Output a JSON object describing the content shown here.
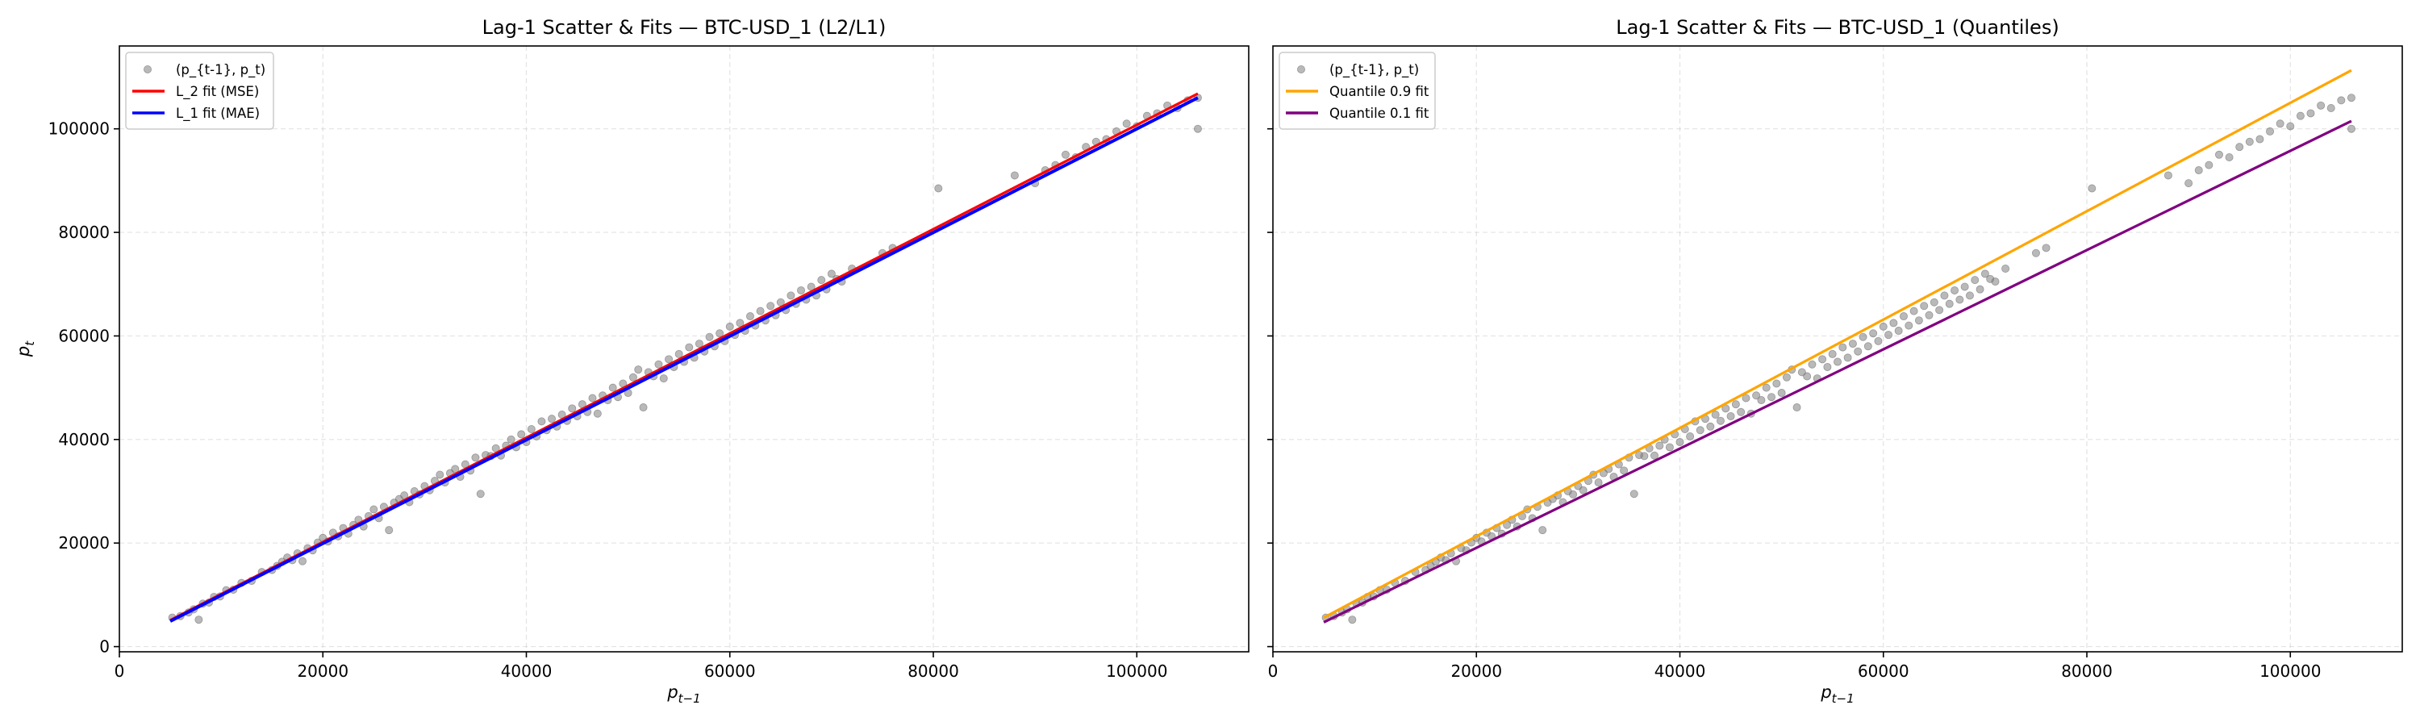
{
  "chart_data": [
    {
      "type": "scatter",
      "title": "Lag-1 Scatter & Fits — BTC-USD_1 (L2/L1)",
      "xlabel": "p_{t−1}",
      "ylabel": "p_t",
      "xlim": [
        0,
        111000
      ],
      "ylim": [
        -1000,
        116000
      ],
      "xticks": [
        0,
        20000,
        40000,
        60000,
        80000,
        100000
      ],
      "yticks": [
        0,
        20000,
        40000,
        60000,
        80000,
        100000
      ],
      "grid": true,
      "legend_position": "top-left",
      "scatter": {
        "name": "(p_{t-1}, p_t)",
        "color": "#808080",
        "points": [
          [
            5200,
            5600
          ],
          [
            6000,
            5900
          ],
          [
            6800,
            6600
          ],
          [
            7300,
            7200
          ],
          [
            7800,
            5200
          ],
          [
            8200,
            8300
          ],
          [
            8800,
            8500
          ],
          [
            9300,
            9600
          ],
          [
            9900,
            9700
          ],
          [
            10500,
            10900
          ],
          [
            11200,
            11000
          ],
          [
            12000,
            12300
          ],
          [
            13000,
            12700
          ],
          [
            14000,
            14400
          ],
          [
            15000,
            14800
          ],
          [
            15500,
            15600
          ],
          [
            16000,
            16400
          ],
          [
            16500,
            17200
          ],
          [
            17000,
            16700
          ],
          [
            17500,
            18000
          ],
          [
            18000,
            16500
          ],
          [
            18500,
            19000
          ],
          [
            19000,
            18600
          ],
          [
            19500,
            20100
          ],
          [
            20000,
            21000
          ],
          [
            20500,
            20300
          ],
          [
            21000,
            22000
          ],
          [
            21500,
            21300
          ],
          [
            22000,
            22900
          ],
          [
            22500,
            21800
          ],
          [
            23000,
            23500
          ],
          [
            23500,
            24500
          ],
          [
            24000,
            23200
          ],
          [
            24500,
            25200
          ],
          [
            25000,
            26500
          ],
          [
            25500,
            24800
          ],
          [
            26000,
            27000
          ],
          [
            26500,
            22500
          ],
          [
            27000,
            27800
          ],
          [
            27500,
            28500
          ],
          [
            28000,
            29200
          ],
          [
            28500,
            27900
          ],
          [
            29000,
            30000
          ],
          [
            29500,
            29400
          ],
          [
            30000,
            31000
          ],
          [
            30500,
            30200
          ],
          [
            31000,
            32000
          ],
          [
            31500,
            33200
          ],
          [
            32000,
            31700
          ],
          [
            32500,
            33500
          ],
          [
            33000,
            34300
          ],
          [
            33500,
            32800
          ],
          [
            34000,
            35200
          ],
          [
            34500,
            34000
          ],
          [
            35000,
            36500
          ],
          [
            35500,
            29500
          ],
          [
            36000,
            37000
          ],
          [
            36500,
            36800
          ],
          [
            37000,
            38300
          ],
          [
            37500,
            36900
          ],
          [
            38000,
            38800
          ],
          [
            38500,
            40000
          ],
          [
            39000,
            38500
          ],
          [
            39500,
            41000
          ],
          [
            40000,
            39500
          ],
          [
            40500,
            42000
          ],
          [
            41000,
            40600
          ],
          [
            41500,
            43500
          ],
          [
            42000,
            41800
          ],
          [
            42500,
            44000
          ],
          [
            43000,
            42500
          ],
          [
            43500,
            44800
          ],
          [
            44000,
            43600
          ],
          [
            44500,
            46000
          ],
          [
            45000,
            44500
          ],
          [
            45500,
            46800
          ],
          [
            46000,
            45300
          ],
          [
            46500,
            48000
          ],
          [
            47000,
            45000
          ],
          [
            47500,
            48500
          ],
          [
            48000,
            47600
          ],
          [
            48500,
            50000
          ],
          [
            49000,
            48200
          ],
          [
            49500,
            50800
          ],
          [
            50000,
            49000
          ],
          [
            50500,
            52000
          ],
          [
            51000,
            53500
          ],
          [
            51500,
            46200
          ],
          [
            52000,
            53000
          ],
          [
            52500,
            52200
          ],
          [
            53000,
            54500
          ],
          [
            53500,
            51800
          ],
          [
            54000,
            55500
          ],
          [
            54500,
            54000
          ],
          [
            55000,
            56500
          ],
          [
            55500,
            55000
          ],
          [
            56000,
            57800
          ],
          [
            56500,
            55800
          ],
          [
            57000,
            58500
          ],
          [
            57500,
            57000
          ],
          [
            58000,
            59800
          ],
          [
            58500,
            58000
          ],
          [
            59000,
            60500
          ],
          [
            59500,
            59000
          ],
          [
            60000,
            61800
          ],
          [
            60500,
            60200
          ],
          [
            61000,
            62500
          ],
          [
            61500,
            61000
          ],
          [
            62000,
            63800
          ],
          [
            62500,
            62000
          ],
          [
            63000,
            64800
          ],
          [
            63500,
            63000
          ],
          [
            64000,
            65800
          ],
          [
            64500,
            64000
          ],
          [
            65000,
            66500
          ],
          [
            65500,
            65000
          ],
          [
            66000,
            67800
          ],
          [
            66500,
            66200
          ],
          [
            67000,
            68800
          ],
          [
            67500,
            67000
          ],
          [
            68000,
            69500
          ],
          [
            68500,
            67800
          ],
          [
            69000,
            70800
          ],
          [
            69500,
            69000
          ],
          [
            70000,
            72000
          ],
          [
            70500,
            71000
          ],
          [
            71000,
            70500
          ],
          [
            72000,
            73000
          ],
          [
            75000,
            76000
          ],
          [
            76000,
            77000
          ],
          [
            80500,
            88500
          ],
          [
            88000,
            91000
          ],
          [
            90000,
            89500
          ],
          [
            91000,
            92000
          ],
          [
            92000,
            93000
          ],
          [
            93000,
            95000
          ],
          [
            94000,
            94500
          ],
          [
            95000,
            96500
          ],
          [
            96000,
            97500
          ],
          [
            97000,
            98000
          ],
          [
            98000,
            99500
          ],
          [
            99000,
            101000
          ],
          [
            100000,
            100500
          ],
          [
            101000,
            102500
          ],
          [
            102000,
            103000
          ],
          [
            103000,
            104500
          ],
          [
            104000,
            104000
          ],
          [
            105000,
            105500
          ],
          [
            106000,
            106000
          ],
          [
            106000,
            100000
          ]
        ]
      },
      "lines": [
        {
          "name": "L_2 fit (MSE)",
          "color": "#ff0000",
          "x": [
            5000,
            106000
          ],
          "y": [
            5100,
            106800
          ]
        },
        {
          "name": "L_1 fit (MAE)",
          "color": "#0000ff",
          "x": [
            5000,
            106000
          ],
          "y": [
            4900,
            106000
          ]
        }
      ]
    },
    {
      "type": "scatter",
      "title": "Lag-1 Scatter & Fits — BTC-USD_1 (Quantiles)",
      "xlabel": "p_{t−1}",
      "ylabel": "",
      "xlim": [
        0,
        111000
      ],
      "ylim": [
        -1000,
        116000
      ],
      "xticks": [
        0,
        20000,
        40000,
        60000,
        80000,
        100000
      ],
      "yticks": [
        0,
        20000,
        40000,
        60000,
        80000,
        100000
      ],
      "grid": true,
      "legend_position": "top-left",
      "scatter": {
        "name": "(p_{t-1}, p_t)",
        "color": "#808080",
        "points": "same_as_left"
      },
      "lines": [
        {
          "name": "Quantile 0.9 fit",
          "color": "#ffa500",
          "x": [
            5000,
            106000
          ],
          "y": [
            5600,
            111300
          ]
        },
        {
          "name": "Quantile 0.1 fit",
          "color": "#800080",
          "x": [
            5000,
            106000
          ],
          "y": [
            4700,
            101500
          ]
        }
      ]
    }
  ]
}
